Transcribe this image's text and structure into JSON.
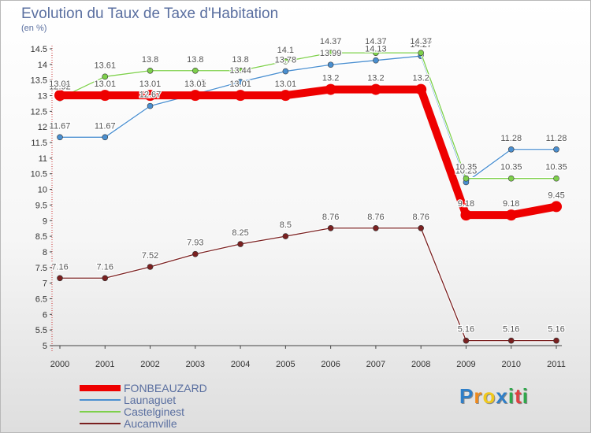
{
  "title": "Evolution du Taux de Taxe d'Habitation",
  "unit_label": "(en %)",
  "logo_text": "Proxiti",
  "chart_data": {
    "type": "line",
    "title": "Evolution du Taux de Taxe d'Habitation",
    "ylabel": "(en %)",
    "xlabel": "",
    "x": [
      "2000",
      "2001",
      "2002",
      "2003",
      "2004",
      "2005",
      "2006",
      "2007",
      "2008",
      "2009",
      "2010",
      "2011"
    ],
    "ylim": [
      5,
      14.5
    ],
    "yticks": [
      "5",
      "5.5",
      "6",
      "6.5",
      "7",
      "7.5",
      "8",
      "8.5",
      "9",
      "9.5",
      "10",
      "10.5",
      "11",
      "11.5",
      "12",
      "12.5",
      "13",
      "13.5",
      "14",
      "14.5"
    ],
    "grid": false,
    "legend_position": "bottom-left",
    "series": [
      {
        "name": "FONBEAUZARD",
        "color": "#ee0000",
        "values": [
          13.01,
          13.01,
          13.01,
          13.01,
          13.01,
          13.01,
          13.2,
          13.2,
          13.2,
          9.18,
          9.18,
          9.45
        ],
        "labels": [
          "13.01",
          "13.01",
          "13.01",
          "13.01",
          "13.01",
          "13.01",
          "13.2",
          "13.2",
          "13.2",
          "9.18",
          "9.18",
          "9.45"
        ]
      },
      {
        "name": "Launaguet",
        "color": "#4a8fd0",
        "values": [
          11.67,
          11.67,
          12.67,
          13.05,
          13.44,
          13.78,
          13.99,
          14.13,
          14.27,
          10.23,
          11.28,
          11.28
        ],
        "labels": [
          "11.67",
          "11.67",
          "12.67",
          "13.05",
          "13.44",
          "13.78",
          "13.99",
          "14.13",
          "14.27",
          "10.23",
          "11.28",
          "11.28"
        ]
      },
      {
        "name": "Castelginest",
        "color": "#7ed04b",
        "values": [
          12.92,
          13.61,
          13.8,
          13.8,
          13.8,
          14.1,
          14.37,
          14.37,
          14.37,
          10.35,
          10.35,
          10.35
        ],
        "labels": [
          "12.92",
          "13.61",
          "13.8",
          "13.8",
          "13.8",
          "14.1",
          "14.37",
          "14.37",
          "14.37",
          "10.35",
          "10.35",
          "10.35"
        ]
      },
      {
        "name": "Aucamville",
        "color": "#7a2020",
        "values": [
          7.16,
          7.16,
          7.52,
          7.93,
          8.25,
          8.5,
          8.76,
          8.76,
          8.76,
          5.16,
          5.16,
          5.16
        ],
        "labels": [
          "7.16",
          "7.16",
          "7.52",
          "7.93",
          "8.25",
          "8.5",
          "8.76",
          "8.76",
          "8.76",
          "5.16",
          "5.16",
          "5.16"
        ]
      }
    ]
  }
}
